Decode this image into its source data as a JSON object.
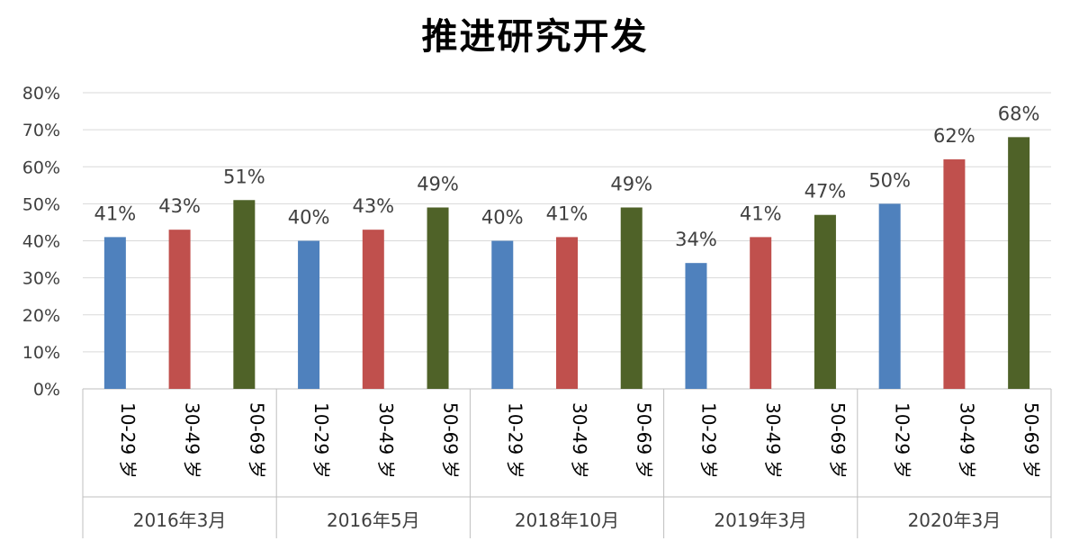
{
  "chart_data": {
    "type": "bar",
    "title": "推进研究开发",
    "xlabel": "",
    "ylabel": "",
    "ylim": [
      0,
      80
    ],
    "y_ticks": [
      "0%",
      "10%",
      "20%",
      "30%",
      "40%",
      "50%",
      "60%",
      "70%",
      "80%"
    ],
    "grid": true,
    "legend": "none",
    "groups": [
      "2016年3月",
      "2016年5月",
      "2018年10月",
      "2019年3月",
      "2020年3月"
    ],
    "sub_categories": [
      "10-29 岁",
      "30-49 岁",
      "50-69 岁"
    ],
    "colors": [
      "#4f81bd",
      "#c0504d",
      "#4f6228"
    ],
    "values": [
      [
        41,
        43,
        51
      ],
      [
        40,
        43,
        49
      ],
      [
        40,
        41,
        49
      ],
      [
        34,
        41,
        47
      ],
      [
        50,
        62,
        68
      ]
    ],
    "data_labels": [
      [
        "41%",
        "43%",
        "51%"
      ],
      [
        "40%",
        "43%",
        "49%"
      ],
      [
        "40%",
        "41%",
        "49%"
      ],
      [
        "34%",
        "41%",
        "47%"
      ],
      [
        "50%",
        "62%",
        "68%"
      ]
    ]
  }
}
